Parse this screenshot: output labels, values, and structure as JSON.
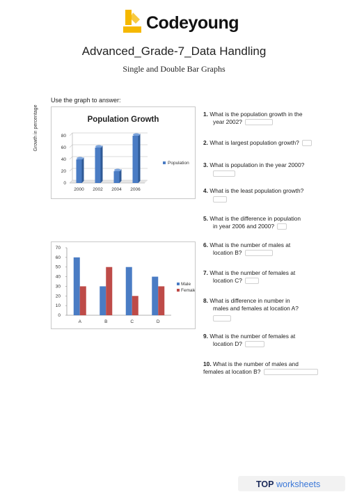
{
  "brand": {
    "name": "Codeyoung",
    "logo_color": "#f5b800"
  },
  "document": {
    "title": "Advanced_Grade-7_Data Handling",
    "subtitle": "Single and Double Bar Graphs",
    "instruction": "Use the graph to answer:"
  },
  "chart_data": [
    {
      "type": "bar",
      "title": "Population Growth",
      "ylabel": "Growth in percentage",
      "xlabel": "",
      "categories": [
        "2000",
        "2002",
        "2004",
        "2006"
      ],
      "series": [
        {
          "name": "Population",
          "values": [
            40,
            60,
            20,
            80
          ],
          "color": "#4a7cc4"
        }
      ],
      "ylim": [
        0,
        80
      ],
      "yticks": [
        0,
        20,
        40,
        60,
        80
      ],
      "legend": "right",
      "grid": true
    },
    {
      "type": "bar",
      "title": "",
      "xlabel": "",
      "ylabel": "",
      "categories": [
        "A",
        "B",
        "C",
        "D"
      ],
      "series": [
        {
          "name": "Male",
          "values": [
            60,
            30,
            50,
            40
          ],
          "color": "#4a7cc4"
        },
        {
          "name": "Female",
          "values": [
            30,
            50,
            20,
            30
          ],
          "color": "#be4b48"
        }
      ],
      "ylim": [
        0,
        70
      ],
      "yticks": [
        0,
        10,
        20,
        30,
        40,
        50,
        60,
        70
      ],
      "legend": "right",
      "grid": false
    }
  ],
  "questions": [
    {
      "num": "1.",
      "text_a": "What is the population growth in the",
      "text_b": "year 2002?"
    },
    {
      "num": "2.",
      "text": "What is largest population growth?"
    },
    {
      "num": "3.",
      "text": "What is population in the year 2000?"
    },
    {
      "num": "4.",
      "text": "What is the least population growth?"
    },
    {
      "num": "5.",
      "text_a": "What is the difference in population",
      "text_b": "in year 2006 and 2000?"
    },
    {
      "num": "6.",
      "text_a": "What is the number of males at",
      "text_b": "location B?"
    },
    {
      "num": "7.",
      "text_a": "What is the number of females at",
      "text_b": "location C?"
    },
    {
      "num": "8.",
      "text_a": "What is difference in number in",
      "text_b": "males and females at location A?"
    },
    {
      "num": "9.",
      "text_a": "What is the number of females at",
      "text_b": "location D?"
    },
    {
      "num": "10.",
      "text_a": "What is the number of males and",
      "text_b": "females at location B?"
    }
  ],
  "footer": {
    "top": "TOP",
    "worksheets": "worksheets"
  }
}
